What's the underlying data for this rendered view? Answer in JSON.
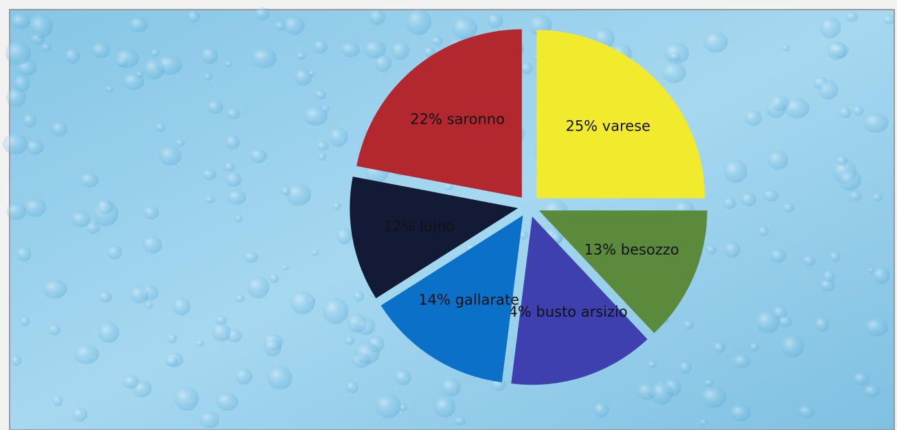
{
  "chart_data": {
    "type": "pie",
    "values": [
      25,
      13,
      14,
      14,
      12,
      22
    ],
    "value_labels": [
      "25% varese",
      "13% besozzo",
      "14% busto arsizio",
      "14% gallarate",
      "12% luino",
      "22% saronno"
    ],
    "colors": [
      "#f2ea2c",
      "#5b8a3c",
      "#3e40b0",
      "#0b70c8",
      "#121a36",
      "#b3282f"
    ]
  }
}
